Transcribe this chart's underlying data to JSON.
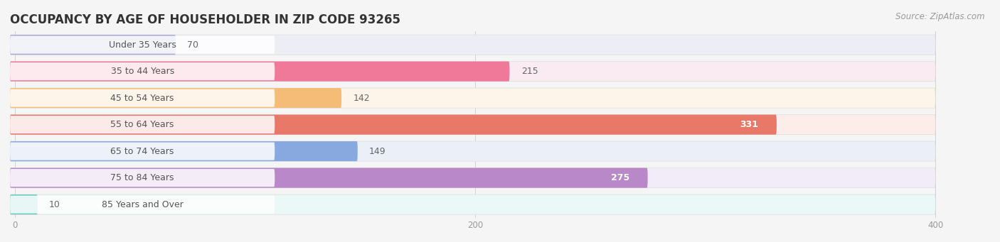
{
  "title": "OCCUPANCY BY AGE OF HOUSEHOLDER IN ZIP CODE 93265",
  "source": "Source: ZipAtlas.com",
  "categories": [
    "Under 35 Years",
    "35 to 44 Years",
    "45 to 54 Years",
    "55 to 64 Years",
    "65 to 74 Years",
    "75 to 84 Years",
    "85 Years and Over"
  ],
  "values": [
    70,
    215,
    142,
    331,
    149,
    275,
    10
  ],
  "bar_colors": [
    "#aaaad8",
    "#f07898",
    "#f5bc78",
    "#e87868",
    "#88a8e0",
    "#b888c8",
    "#68c8c0"
  ],
  "bar_bg_colors": [
    "#ededf5",
    "#faeaf2",
    "#fdf5ea",
    "#fcecea",
    "#eaeff8",
    "#f2ecf8",
    "#eaf8f7"
  ],
  "value_white": [
    false,
    false,
    false,
    true,
    false,
    true,
    false
  ],
  "xlim_max": 415,
  "bg_max": 400,
  "xticks": [
    0,
    200,
    400
  ],
  "title_fontsize": 12,
  "label_fontsize": 9,
  "value_fontsize": 9,
  "source_fontsize": 8.5,
  "bg_color": "#f5f5f5",
  "title_color": "#333333",
  "source_color": "#999999",
  "label_color": "#555555",
  "value_color_dark": "#666666",
  "value_color_white": "#ffffff"
}
